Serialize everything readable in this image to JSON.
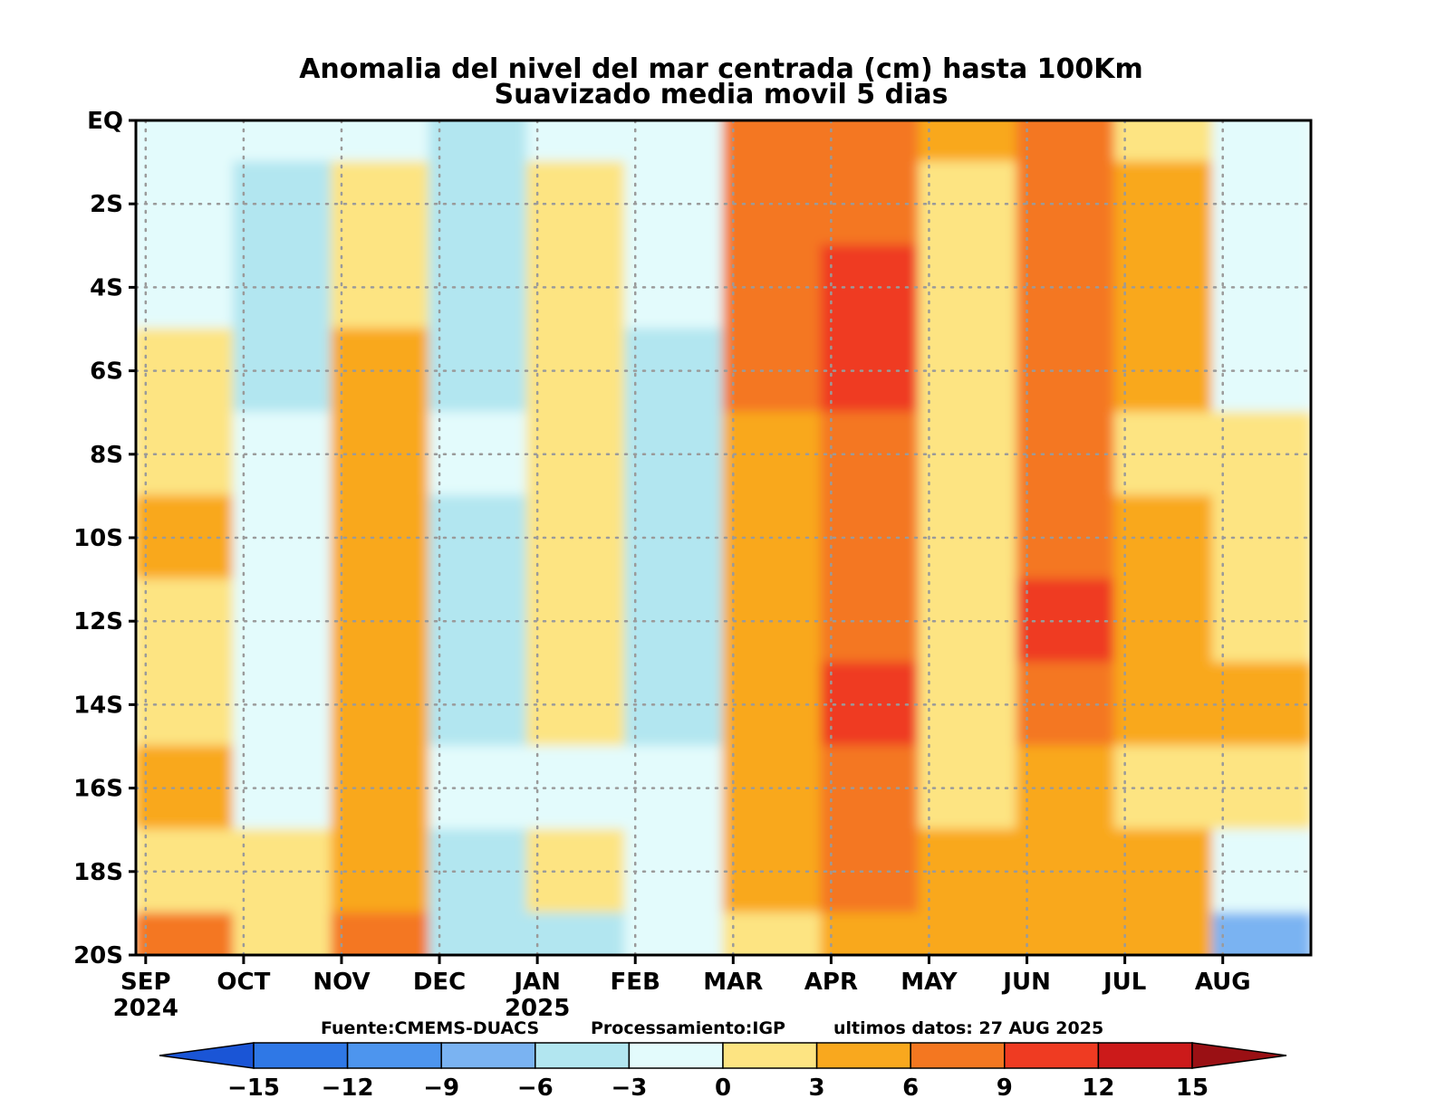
{
  "chart_data": {
    "type": "heatmap",
    "title": "Anomalia del nivel del mar centrada (cm) hasta 100Km",
    "subtitle": "Suavizado media movil 5 dias",
    "y_axis": {
      "labels": [
        "EQ",
        "2S",
        "4S",
        "6S",
        "8S",
        "10S",
        "12S",
        "14S",
        "16S",
        "18S",
        "20S"
      ],
      "range": [
        "EQ",
        "20S"
      ]
    },
    "x_axis": {
      "months": [
        "SEP",
        "OCT",
        "NOV",
        "DEC",
        "JAN",
        "FEB",
        "MAR",
        "APR",
        "MAY",
        "JUN",
        "JUL",
        "AUG"
      ],
      "years": [
        {
          "label": "2024",
          "under": "SEP"
        },
        {
          "label": "2025",
          "under": "JAN"
        }
      ],
      "range": [
        "SEP 2024",
        "AUG 2025"
      ]
    },
    "grid": true,
    "sources": {
      "fuente": "Fuente:CMEMS-DUACS",
      "procesamiento": "Processamiento:IGP",
      "ultimos": "ultimos datos: 27 AUG 2025"
    },
    "colorbar": {
      "levels": [
        "−15",
        "−12",
        "−9",
        "−6",
        "−3",
        "0",
        "3",
        "6",
        "9",
        "12",
        "15"
      ],
      "colors": [
        "#1a55d6",
        "#2f78e6",
        "#4d95ee",
        "#7ab3f2",
        "#b2e6f0",
        "#e3fbfc",
        "#fde482",
        "#f9a81e",
        "#f47720",
        "#ef3b22",
        "#cc1a1a",
        "#9a1014"
      ]
    },
    "anomaly_field": {
      "description_rows_lat": [
        0,
        -2,
        -4,
        -6,
        -8,
        -10,
        -12,
        -14,
        -16,
        -18,
        -20
      ],
      "months_cols": [
        "SEP",
        "OCT",
        "NOV",
        "DEC",
        "JAN",
        "FEB",
        "MAR",
        "APR",
        "MAY",
        "JUN",
        "JUL",
        "AUG"
      ],
      "values": [
        [
          -3,
          -3,
          -3,
          -4,
          -1,
          -3,
          6,
          8,
          3,
          6,
          1,
          -2
        ],
        [
          -2,
          -5,
          0,
          -5,
          0,
          -3,
          8,
          8,
          2,
          7,
          3,
          -3
        ],
        [
          -2,
          -6,
          2,
          -4,
          1,
          -3,
          8,
          9,
          2,
          7,
          3,
          -2
        ],
        [
          0,
          -5,
          3,
          -4,
          2,
          -5,
          7,
          9,
          2,
          8,
          3,
          -2
        ],
        [
          2,
          -3,
          3,
          -3,
          2,
          -6,
          5,
          8,
          2,
          8,
          2,
          0
        ],
        [
          4,
          -2,
          4,
          -4,
          0,
          -6,
          3,
          7,
          1,
          8,
          4,
          1
        ],
        [
          2,
          -2,
          4,
          -4,
          1,
          -5,
          3,
          6,
          1,
          9,
          4,
          2
        ],
        [
          2,
          -2,
          3,
          -5,
          1,
          -6,
          3,
          10,
          2,
          8,
          3,
          3
        ],
        [
          5,
          -1,
          4,
          -3,
          -1,
          -3,
          3,
          6,
          1,
          5,
          2,
          0
        ],
        [
          2,
          0,
          5,
          -4,
          2,
          -3,
          3,
          6,
          3,
          5,
          4,
          -3
        ],
        [
          6,
          0,
          6,
          -5,
          -6,
          -2,
          2,
          3,
          3,
          4,
          4,
          -7
        ]
      ]
    }
  }
}
